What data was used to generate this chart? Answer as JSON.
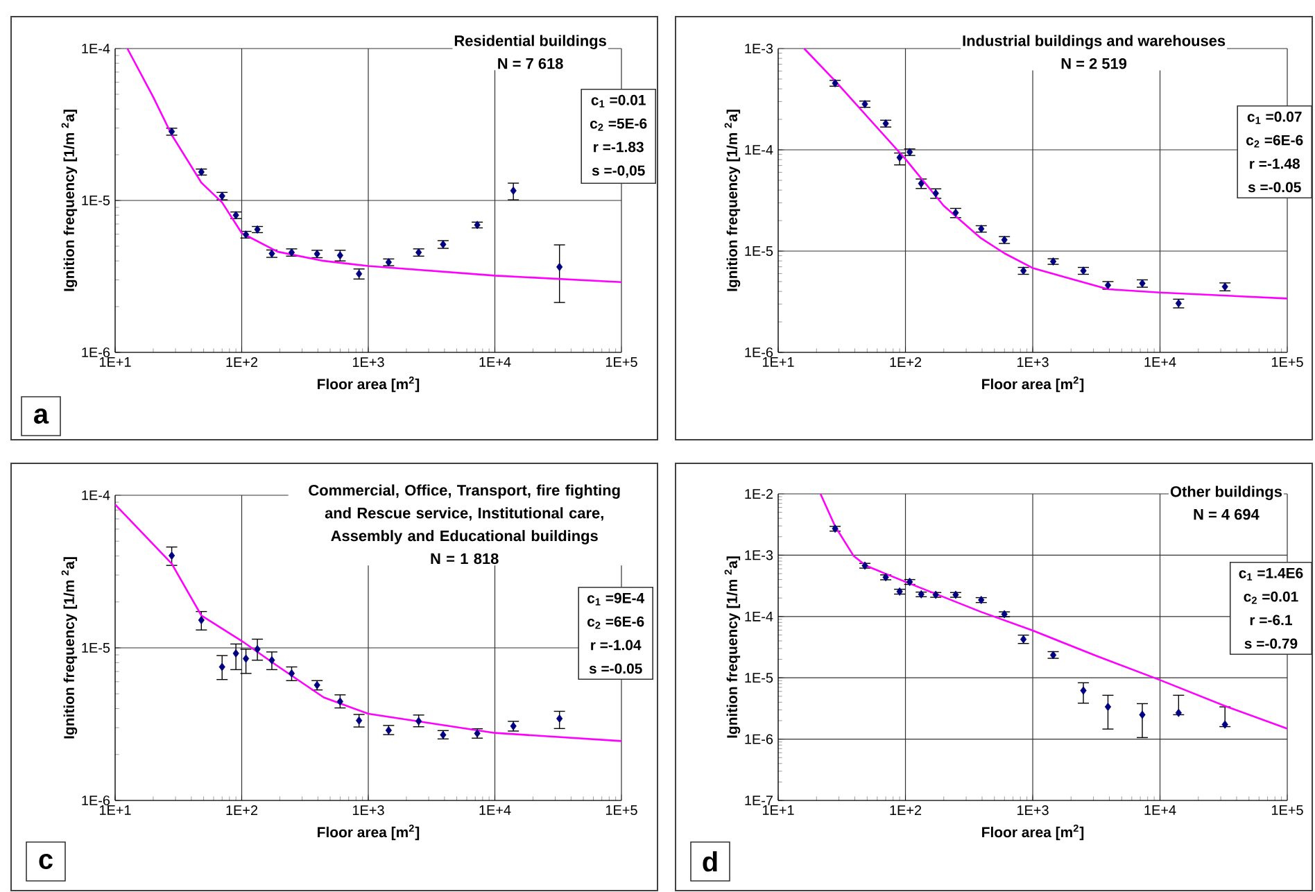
{
  "chart_data": [
    {
      "type": "scatter",
      "title": "Residential buildings",
      "subtitle": "N = 7 618",
      "xlabel": "Floor area [m$^{2}$]",
      "ylabel": "Ignition frequency [1/m $^{2}$a]",
      "log": "xy",
      "grid": true,
      "xlim": [
        10,
        100000
      ],
      "ylim": [
        1e-06,
        0.0001
      ],
      "xticks": [
        {
          "value": 10,
          "label": "1E+1"
        },
        {
          "value": 100,
          "label": "1E+2"
        },
        {
          "value": 1000,
          "label": "1E+3"
        },
        {
          "value": 10000,
          "label": "1E+4"
        },
        {
          "value": 100000,
          "label": "1E+5"
        }
      ],
      "yticks": [
        {
          "value": 1e-06,
          "label": "1E-6"
        },
        {
          "value": 1e-05,
          "label": "1E-5"
        },
        {
          "value": 0.0001,
          "label": "1E-4"
        }
      ],
      "annotations": [
        "c$_{1}$ =0.01",
        "c$_{2}$ =5E-6",
        "r =-1.83",
        "s =-0,05",
        "a"
      ],
      "series": [
        {
          "type": "scatter",
          "color": "#000080",
          "marker": "diamond",
          "x": [
            28,
            48,
            70,
            90,
            108,
            133,
            173,
            248,
            394,
            599,
            845,
            1448,
            2500,
            3900,
            7260,
            14000,
            32400
          ],
          "values": [
            2.84e-05,
            1.54e-05,
            1.07e-05,
            8e-06,
            5.96e-06,
            6.44e-06,
            4.47e-06,
            4.55e-06,
            4.45e-06,
            4.35e-06,
            3.29e-06,
            3.92e-06,
            4.55e-06,
            5.14e-06,
            6.9e-06,
            1.16e-05,
            3.65e-06
          ],
          "errors": [
            1.5e-06,
            7e-07,
            6e-07,
            4e-07,
            3e-07,
            3e-07,
            2.5e-07,
            2.5e-07,
            2.5e-07,
            3.5e-07,
            2.5e-07,
            2e-07,
            2.5e-07,
            3e-07,
            3e-07,
            [
              1.01e-05,
              1.3e-05
            ],
            [
              2.13e-06,
              5.1e-06
            ]
          ]
        },
        {
          "type": "line",
          "color": "#ff00ff",
          "marker": "none",
          "x": [
            12.5,
            20,
            28,
            48,
            70,
            100,
            192,
            445,
            1000,
            10000,
            100000
          ],
          "values": [
            0.0001,
            4.8e-05,
            2.7e-05,
            1.31e-05,
            9.7e-06,
            6.1e-06,
            4.6e-06,
            4e-06,
            3.7e-06,
            3.2e-06,
            2.9e-06
          ]
        }
      ]
    },
    {
      "type": "scatter",
      "title": "Industrial buildings and warehouses",
      "subtitle": "N = 2 519",
      "xlabel": "Floor area [m$^{2}$]",
      "ylabel": "Ignition frequency [1/m $^{2}$a]",
      "log": "xy",
      "grid": true,
      "xlim": [
        10,
        100000
      ],
      "ylim": [
        1e-06,
        0.001
      ],
      "xticks": [
        {
          "value": 10,
          "label": "1E+1"
        },
        {
          "value": 100,
          "label": "1E+2"
        },
        {
          "value": 1000,
          "label": "1E+3"
        },
        {
          "value": 10000,
          "label": "1E+4"
        },
        {
          "value": 100000,
          "label": "1E+5"
        }
      ],
      "yticks": [
        {
          "value": 1e-06,
          "label": "1E-6"
        },
        {
          "value": 1e-05,
          "label": "1E-5"
        },
        {
          "value": 0.0001,
          "label": "1E-4"
        },
        {
          "value": 0.001,
          "label": "1E-3"
        }
      ],
      "annotations": [
        "c$_{1}$ =0.07",
        "c$_{2}$ =6E-6",
        "r =-1.48",
        "s =-0.05"
      ],
      "series": [
        {
          "type": "scatter",
          "color": "#000080",
          "marker": "diamond",
          "x": [
            28,
            48,
            70,
            90,
            108,
            133,
            173,
            248,
            394,
            599,
            845,
            1448,
            2500,
            3900,
            7260,
            14000,
            32400
          ],
          "values": [
            0.000455,
            0.000283,
            0.000182,
            8.4e-05,
            9.5e-05,
            4.65e-05,
            3.72e-05,
            2.39e-05,
            1.66e-05,
            1.29e-05,
            6.4e-06,
            7.9e-06,
            6.4e-06,
            4.6e-06,
            4.8e-06,
            3.05e-06,
            4.45e-06
          ],
          "errors": [
            3e-05,
            2e-05,
            1.4e-05,
            [
              7.1e-05,
              9.3e-05
            ],
            7e-06,
            5e-06,
            4e-06,
            2.5e-06,
            1.2e-06,
            1e-06,
            5e-07,
            5e-07,
            5e-07,
            4e-07,
            4e-07,
            3e-07,
            4e-07
          ]
        },
        {
          "type": "line",
          "color": "#ff00ff",
          "marker": "none",
          "x": [
            16,
            28,
            100,
            200,
            392,
            600,
            1000,
            3920,
            10000,
            100000
          ],
          "values": [
            0.001,
            0.00048,
            8.1e-05,
            2.8e-05,
            1.34e-05,
            9.5e-06,
            6.8e-06,
            4.2e-06,
            3.9e-06,
            3.4e-06
          ]
        }
      ]
    },
    {
      "type": "scatter",
      "title": "Commercial, Office, Transport, fire fighting and Rescue service, Institutional care, Assembly and Educational buildings",
      "subtitle": "N = 1 818",
      "xlabel": "Floor area [m$^{2}$]",
      "ylabel": "Ignition frequency [1/m $^{2}$a]",
      "log": "xy",
      "grid": true,
      "xlim": [
        10,
        100000
      ],
      "ylim": [
        1e-06,
        0.0001
      ],
      "xticks": [
        {
          "value": 10,
          "label": "1E+1"
        },
        {
          "value": 100,
          "label": "1E+2"
        },
        {
          "value": 1000,
          "label": "1E+3"
        },
        {
          "value": 10000,
          "label": "1E+4"
        },
        {
          "value": 100000,
          "label": "1E+5"
        }
      ],
      "yticks": [
        {
          "value": 1e-06,
          "label": "1E-6"
        },
        {
          "value": 1e-05,
          "label": "1E-5"
        },
        {
          "value": 0.0001,
          "label": "1E-4"
        }
      ],
      "annotations": [
        "c$_{1}$ =9E-4",
        "c$_{2}$ =6E-6",
        "r =-1.04",
        "s =-0.05",
        "c"
      ],
      "series": [
        {
          "type": "scatter",
          "color": "#000080",
          "marker": "diamond",
          "x": [
            28,
            48,
            70,
            90,
            108,
            133,
            173,
            248,
            394,
            599,
            845,
            1448,
            2500,
            3900,
            7260,
            14000,
            32400
          ],
          "values": [
            4.02e-05,
            1.52e-05,
            7.5e-06,
            9.2e-06,
            8.5e-06,
            9.8e-06,
            8.3e-06,
            6.8e-06,
            5.7e-06,
            4.45e-06,
            3.34e-06,
            2.88e-06,
            3.31e-06,
            2.69e-06,
            2.75e-06,
            3.07e-06,
            3.44e-06
          ],
          "errors": [
            [
              3.47e-05,
              4.58e-05
            ],
            [
              1.31e-05,
              1.73e-05
            ],
            [
              6.2e-06,
              8.9e-06
            ],
            [
              7.2e-06,
              1.06e-05
            ],
            [
              6.8e-06,
              9.8e-06
            ],
            [
              8.3e-06,
              1.14e-05
            ],
            [
              7.2e-06,
              9.4e-06
            ],
            [
              6.1e-06,
              7.5e-06
            ],
            [
              5.3e-06,
              6.1e-06
            ],
            [
              4.04e-06,
              4.92e-06
            ],
            [
              3.03e-06,
              3.66e-06
            ],
            [
              2.7e-06,
              3.1e-06
            ],
            [
              3.04e-06,
              3.63e-06
            ],
            [
              2.53e-06,
              2.87e-06
            ],
            [
              2.56e-06,
              2.95e-06
            ],
            [
              2.85e-06,
              3.3e-06
            ],
            [
              2.96e-06,
              3.84e-06
            ]
          ]
        },
        {
          "type": "line",
          "color": "#ff00ff",
          "marker": "none",
          "x": [
            10,
            28,
            48,
            100,
            192,
            445,
            1000,
            10000,
            100000
          ],
          "values": [
            8.7e-05,
            3.56e-05,
            1.63e-05,
            1.11e-05,
            7.6e-06,
            4.73e-06,
            3.7e-06,
            2.77e-06,
            2.45e-06
          ]
        }
      ]
    },
    {
      "type": "scatter",
      "title": "Other buildings",
      "subtitle": "N = 4 694",
      "xlabel": "Floor area [m$^{2}$]",
      "ylabel": "Ignition frequency [1/m $^{2}$a]",
      "log": "xy",
      "grid": true,
      "xlim": [
        10,
        100000
      ],
      "ylim": [
        1e-07,
        0.01
      ],
      "xticks": [
        {
          "value": 10,
          "label": "1E+1"
        },
        {
          "value": 100,
          "label": "1E+2"
        },
        {
          "value": 1000,
          "label": "1E+3"
        },
        {
          "value": 10000,
          "label": "1E+4"
        },
        {
          "value": 100000,
          "label": "1E+5"
        }
      ],
      "yticks": [
        {
          "value": 1e-07,
          "label": "1E-7"
        },
        {
          "value": 1e-06,
          "label": "1E-6"
        },
        {
          "value": 1e-05,
          "label": "1E-5"
        },
        {
          "value": 0.0001,
          "label": "1E-4"
        },
        {
          "value": 0.001,
          "label": "1E-3"
        },
        {
          "value": 0.01,
          "label": "1E-2"
        }
      ],
      "annotations": [
        "c$_{1}$ =1.4E6",
        "c$_{2}$ =0.01",
        "r =-6.1",
        "s =-0.79",
        "d"
      ],
      "series": [
        {
          "type": "scatter",
          "color": "#000080",
          "marker": "diamond",
          "x": [
            28,
            48,
            70,
            90,
            108,
            133,
            173,
            248,
            394,
            599,
            845,
            1448,
            2500,
            3900,
            7260,
            14000,
            32400
          ],
          "values": [
            0.00271,
            0.000675,
            0.000437,
            0.000255,
            0.000367,
            0.00023,
            0.000226,
            0.000226,
            0.000186,
            0.000109,
            4.25e-05,
            2.35e-05,
            6.2e-06,
            3.36e-06,
            2.5e-06,
            2.68e-06,
            1.73e-06
          ],
          "errors": [
            0.00024,
            6e-05,
            4e-05,
            2.3e-05,
            3.3e-05,
            2e-05,
            2e-05,
            2e-05,
            1.7e-05,
            1e-05,
            [
              3.63e-05,
              4.97e-05
            ],
            [
              2.08e-05,
              2.67e-05
            ],
            [
              3.86e-06,
              8.3e-06
            ],
            [
              1.46e-06,
              5.19e-06
            ],
            [
              1.06e-06,
              3.79e-06
            ],
            [
              2.5e-06,
              5.19e-06
            ],
            [
              1.6e-06,
              3.36e-06
            ]
          ]
        },
        {
          "type": "line",
          "color": "#ff00ff",
          "marker": "none",
          "x": [
            21.5,
            28,
            39.2,
            48.9,
            100,
            392,
            1000,
            3180,
            10000,
            32300,
            100000
          ],
          "values": [
            0.01,
            0.00296,
            0.00097,
            0.000675,
            0.000367,
            0.000119,
            5.9e-05,
            2.27e-05,
            9.2e-06,
            3.48e-06,
            1.48e-06
          ]
        }
      ]
    }
  ]
}
